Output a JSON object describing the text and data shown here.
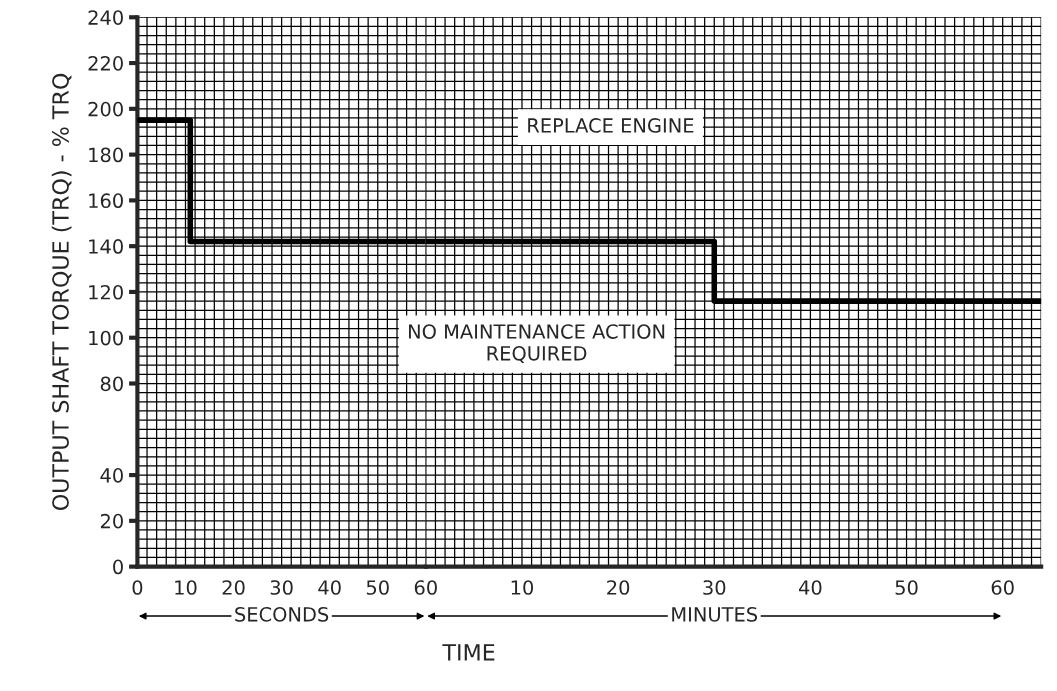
{
  "chart_data": [
    {
      "type": "step",
      "ylabel": "OUTPUT SHAFT TORQUE (TRQ) - % TRQ",
      "xlabel": "TIME",
      "x": [
        0,
        11,
        60
      ],
      "series": [
        {
          "color": "#000000",
          "values": [
            195,
            142,
            142
          ]
        }
      ],
      "xlim": [
        0,
        60
      ],
      "xticks": [
        0,
        10,
        20,
        30,
        40,
        50,
        60
      ],
      "ylim": [
        0,
        240
      ],
      "yticks": [
        0,
        20,
        40,
        80,
        100,
        120,
        140,
        160,
        180,
        200,
        220,
        240
      ],
      "grid": true,
      "annotations": [
        "SECONDS"
      ]
    },
    {
      "type": "step",
      "x": [
        0,
        30,
        64
      ],
      "series": [
        {
          "color": "#000000",
          "values": [
            142,
            116,
            116
          ]
        }
      ],
      "xlim": [
        0,
        64
      ],
      "xticks": [
        10,
        20,
        30,
        40,
        50,
        60
      ],
      "ylim": [
        0,
        240
      ],
      "tick_labels": "x",
      "grid": true,
      "annotations": [
        "REPLACE ENGINE",
        "NO MAINTENANCE ACTION\nREQUIRED",
        "MINUTES"
      ]
    }
  ]
}
